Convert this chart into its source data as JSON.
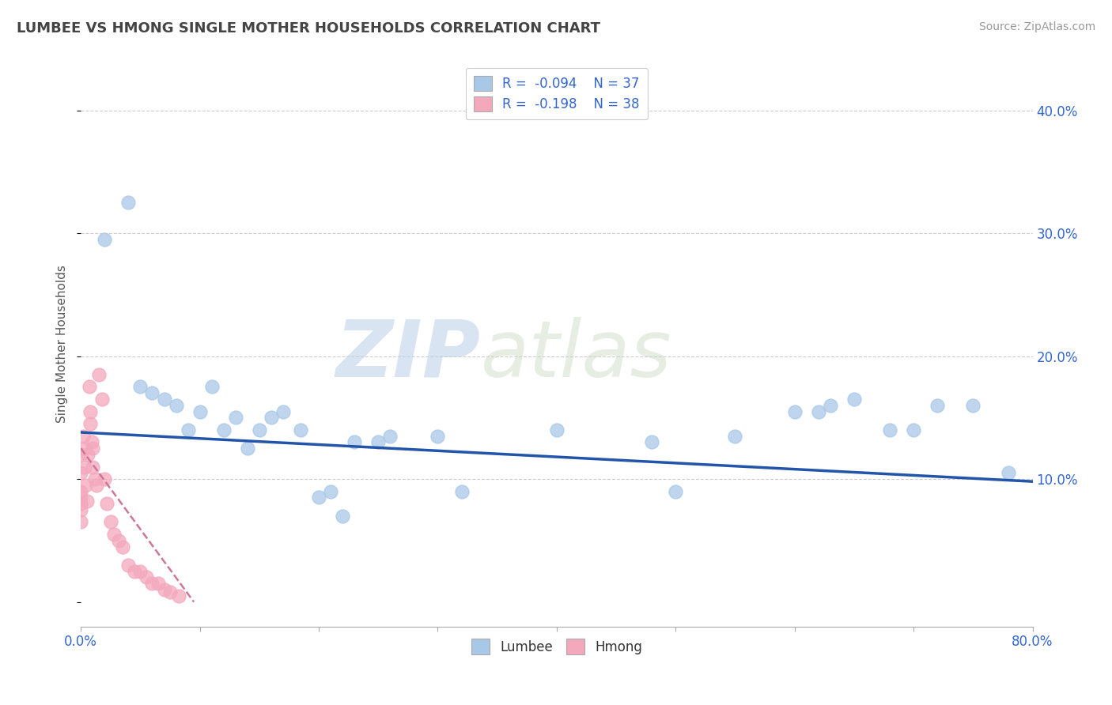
{
  "title": "LUMBEE VS HMONG SINGLE MOTHER HOUSEHOLDS CORRELATION CHART",
  "source_text": "Source: ZipAtlas.com",
  "ylabel": "Single Mother Households",
  "xlim": [
    0.0,
    0.8
  ],
  "ylim": [
    -0.02,
    0.44
  ],
  "xticks": [
    0.0,
    0.1,
    0.2,
    0.3,
    0.4,
    0.5,
    0.6,
    0.7,
    0.8
  ],
  "xtick_labels": [
    "0.0%",
    "",
    "",
    "",
    "",
    "",
    "",
    "",
    "80.0%"
  ],
  "yticks_right": [
    0.1,
    0.2,
    0.3,
    0.4
  ],
  "ytick_right_labels": [
    "10.0%",
    "20.0%",
    "30.0%",
    "40.0%"
  ],
  "grid_color": "#cccccc",
  "lumbee_color": "#a8c8e8",
  "hmong_color": "#f4a8bc",
  "lumbee_line_color": "#2255aa",
  "hmong_line_color": "#cc7799",
  "lumbee_R": -0.094,
  "lumbee_N": 37,
  "hmong_R": -0.198,
  "hmong_N": 38,
  "watermark_zip": "ZIP",
  "watermark_atlas": "atlas",
  "lumbee_x": [
    0.02,
    0.04,
    0.05,
    0.06,
    0.07,
    0.08,
    0.09,
    0.1,
    0.11,
    0.12,
    0.13,
    0.14,
    0.15,
    0.16,
    0.17,
    0.185,
    0.2,
    0.21,
    0.22,
    0.23,
    0.25,
    0.26,
    0.3,
    0.32,
    0.4,
    0.48,
    0.5,
    0.55,
    0.6,
    0.62,
    0.63,
    0.65,
    0.68,
    0.7,
    0.72,
    0.75,
    0.78
  ],
  "lumbee_y": [
    0.295,
    0.325,
    0.175,
    0.17,
    0.165,
    0.16,
    0.14,
    0.155,
    0.175,
    0.14,
    0.15,
    0.125,
    0.14,
    0.15,
    0.155,
    0.14,
    0.085,
    0.09,
    0.07,
    0.13,
    0.13,
    0.135,
    0.135,
    0.09,
    0.14,
    0.13,
    0.09,
    0.135,
    0.155,
    0.155,
    0.16,
    0.165,
    0.14,
    0.14,
    0.16,
    0.16,
    0.105
  ],
  "hmong_x": [
    0.0,
    0.0,
    0.0,
    0.0,
    0.0,
    0.0,
    0.0,
    0.002,
    0.003,
    0.003,
    0.004,
    0.005,
    0.006,
    0.007,
    0.008,
    0.008,
    0.009,
    0.01,
    0.01,
    0.012,
    0.013,
    0.015,
    0.018,
    0.02,
    0.022,
    0.025,
    0.028,
    0.032,
    0.035,
    0.04,
    0.045,
    0.05,
    0.055,
    0.06,
    0.065,
    0.07,
    0.075,
    0.082
  ],
  "hmong_y": [
    0.12,
    0.105,
    0.09,
    0.085,
    0.08,
    0.075,
    0.065,
    0.135,
    0.125,
    0.11,
    0.095,
    0.082,
    0.12,
    0.175,
    0.155,
    0.145,
    0.13,
    0.125,
    0.11,
    0.1,
    0.095,
    0.185,
    0.165,
    0.1,
    0.08,
    0.065,
    0.055,
    0.05,
    0.045,
    0.03,
    0.025,
    0.025,
    0.02,
    0.015,
    0.015,
    0.01,
    0.008,
    0.005
  ],
  "lumbee_trend_x": [
    0.0,
    0.8
  ],
  "lumbee_trend_y": [
    0.138,
    0.098
  ],
  "hmong_trend_x": [
    0.0,
    0.095
  ],
  "hmong_trend_y": [
    0.125,
    0.0
  ]
}
